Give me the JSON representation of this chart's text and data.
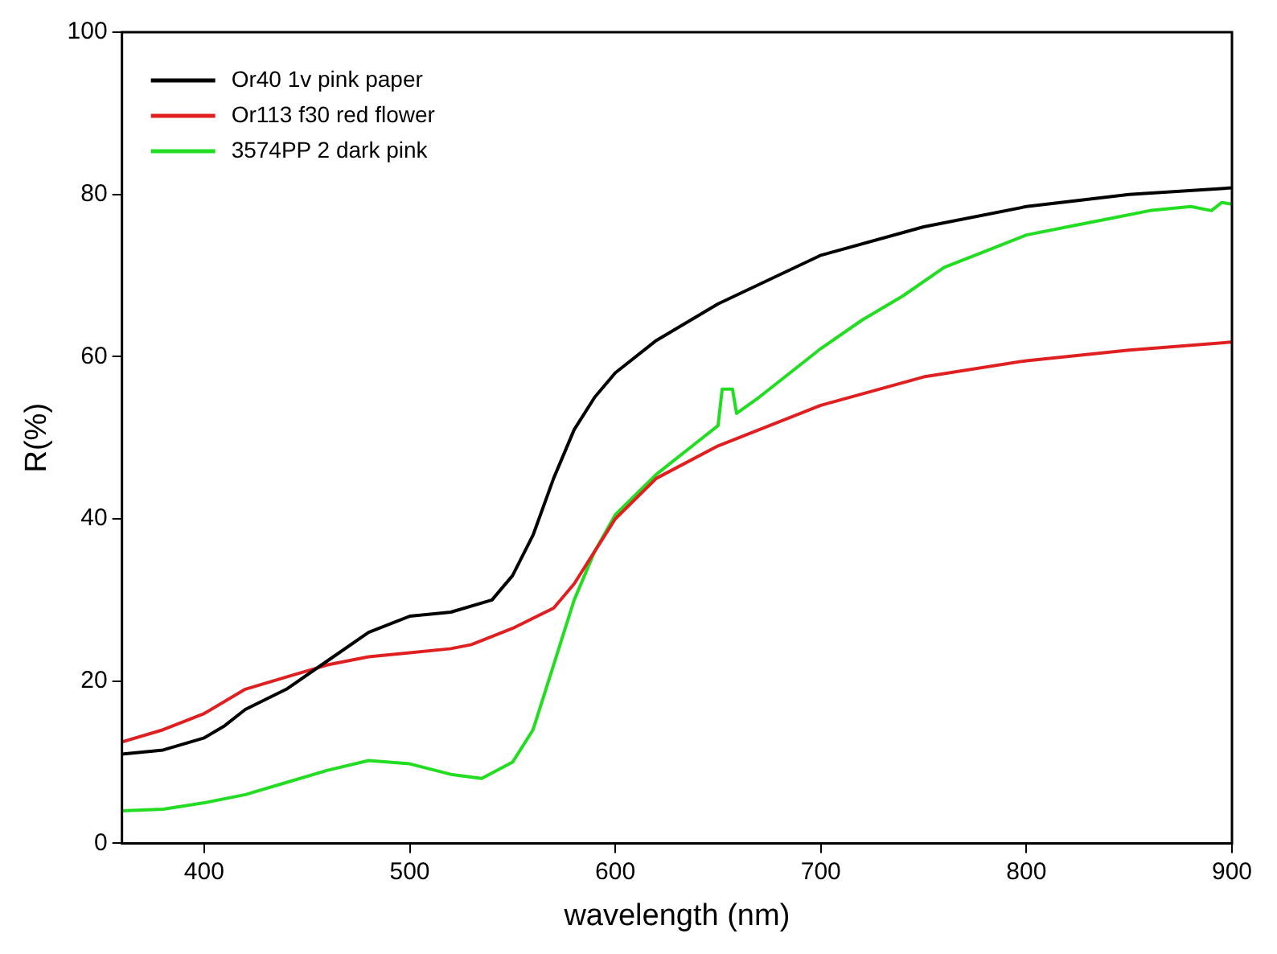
{
  "chart_data": {
    "type": "line",
    "xlabel": "wavelength (nm)",
    "ylabel": "R(%)",
    "xlim": [
      360,
      900
    ],
    "xticks": [
      400,
      500,
      600,
      700,
      800,
      900
    ],
    "ylim": [
      0,
      100
    ],
    "yticks": [
      0,
      20,
      40,
      60,
      80,
      100
    ],
    "grid": false,
    "legend": "top left",
    "marker": "none",
    "line_style": "solid",
    "series": [
      {
        "name": "Or40 1v pink paper",
        "color": "#000000",
        "x": [
          360,
          380,
          400,
          410,
          420,
          440,
          460,
          480,
          500,
          520,
          540,
          550,
          560,
          570,
          580,
          590,
          600,
          620,
          650,
          700,
          750,
          800,
          850,
          900
        ],
        "values": [
          11,
          11.5,
          13,
          14.5,
          16.5,
          19,
          22.5,
          26,
          28,
          28.5,
          30,
          33,
          38,
          45,
          51,
          55,
          58,
          62,
          66.5,
          72.5,
          76,
          78.5,
          80,
          80.8
        ]
      },
      {
        "name": "Or113 f30 red flower",
        "color": "#e02020",
        "x": [
          360,
          380,
          400,
          420,
          440,
          460,
          480,
          500,
          520,
          530,
          550,
          570,
          580,
          590,
          600,
          620,
          650,
          700,
          750,
          800,
          850,
          900
        ],
        "values": [
          12.5,
          14,
          16,
          19,
          20.5,
          22,
          23,
          23.5,
          24,
          24.5,
          26.5,
          29,
          32,
          36,
          40,
          45,
          49,
          54,
          57.5,
          59.5,
          60.8,
          61.8
        ]
      },
      {
        "name": "3574PP 2 dark pink",
        "color": "#22dd22",
        "x": [
          360,
          380,
          400,
          420,
          440,
          460,
          480,
          500,
          520,
          535,
          550,
          560,
          570,
          580,
          590,
          600,
          620,
          640,
          650,
          652,
          657,
          659,
          670,
          700,
          720,
          740,
          760,
          780,
          800,
          820,
          840,
          860,
          880,
          890,
          895,
          900
        ],
        "values": [
          4,
          4.2,
          5,
          6,
          7.5,
          9,
          10.2,
          9.8,
          8.5,
          8,
          10,
          14,
          22,
          30,
          36,
          40.5,
          45.5,
          49.5,
          51.5,
          56,
          56,
          53,
          55,
          61,
          64.5,
          67.5,
          71,
          73,
          75,
          76,
          77,
          78,
          78.5,
          78,
          79,
          78.8
        ]
      }
    ]
  }
}
